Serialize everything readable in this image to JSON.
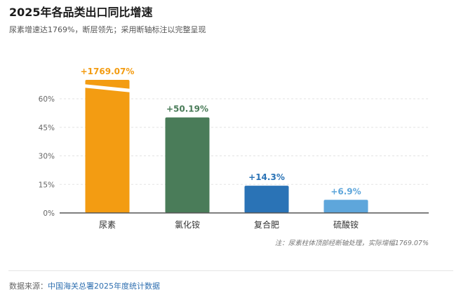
{
  "title": "2025年各品类出口同比增速",
  "subtitle": "尿素增速达1769%，断层领先；采用断轴标注以完整呈现",
  "note": "注：尿素柱体顶部经断轴处理，实际增幅1769.07%",
  "source": {
    "prefix": "数据来源：",
    "name": "中国海关总署2025年度统计数据"
  },
  "colors": {
    "urea": "#f39c12",
    "ammonium_chloride": "#4a7c59",
    "compound": "#2a73b6",
    "ammonium_sulfate": "#5ea6db",
    "grid": "#e3e3e3",
    "axis": "#555555"
  },
  "chart_data": {
    "type": "bar",
    "categories": [
      "尿素",
      "氯化铵",
      "复合肥",
      "硫酸铵"
    ],
    "values": [
      1769.07,
      50.19,
      14.3,
      6.9
    ],
    "value_labels": [
      "+1769.07%",
      "+50.19%",
      "+14.3%",
      "+6.9%"
    ],
    "y_ticks": [
      "0%",
      "15%",
      "30%",
      "45%",
      "60%"
    ],
    "y_tick_values": [
      0,
      15,
      30,
      45,
      60
    ],
    "ylim": [
      0,
      72
    ],
    "axis_break": true,
    "grid": true,
    "legend": "none"
  }
}
